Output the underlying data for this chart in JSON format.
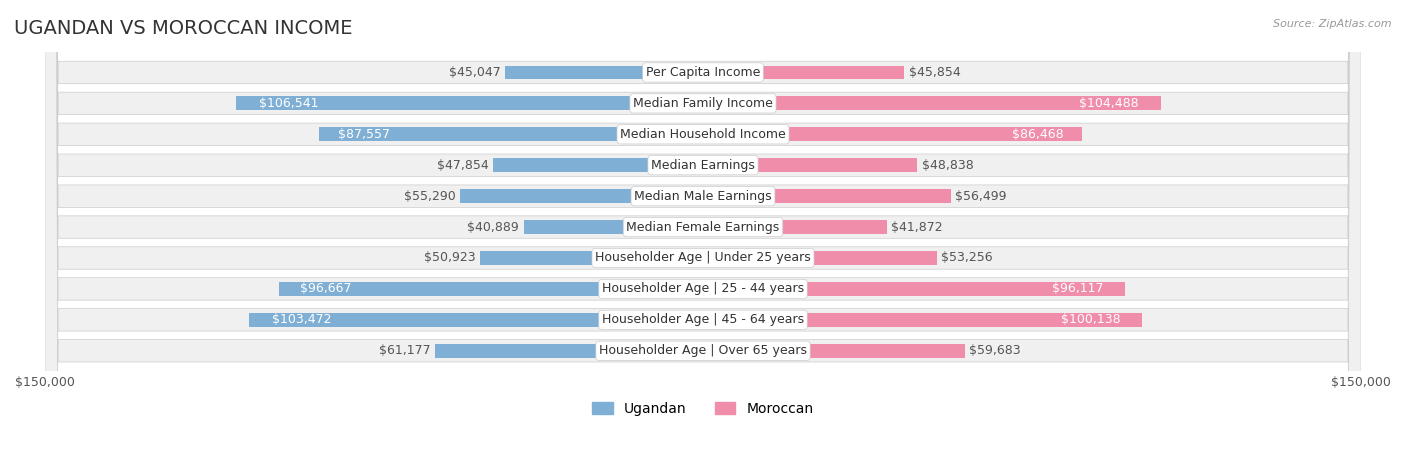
{
  "title": "UGANDAN VS MOROCCAN INCOME",
  "source": "Source: ZipAtlas.com",
  "categories": [
    "Per Capita Income",
    "Median Family Income",
    "Median Household Income",
    "Median Earnings",
    "Median Male Earnings",
    "Median Female Earnings",
    "Householder Age | Under 25 years",
    "Householder Age | 25 - 44 years",
    "Householder Age | 45 - 64 years",
    "Householder Age | Over 65 years"
  ],
  "ugandan": [
    45047,
    106541,
    87557,
    47854,
    55290,
    40889,
    50923,
    96667,
    103472,
    61177
  ],
  "moroccan": [
    45854,
    104488,
    86468,
    48838,
    56499,
    41872,
    53256,
    96117,
    100138,
    59683
  ],
  "ugandan_color": "#7fafd4",
  "moroccan_color": "#f08dab",
  "ugandan_label_color_threshold": 80000,
  "moroccan_label_color_threshold": 80000,
  "xmax": 150000,
  "background_color": "#ffffff",
  "row_bg_color": "#f0f0f0",
  "label_fontsize": 9,
  "title_fontsize": 14,
  "legend_fontsize": 10
}
